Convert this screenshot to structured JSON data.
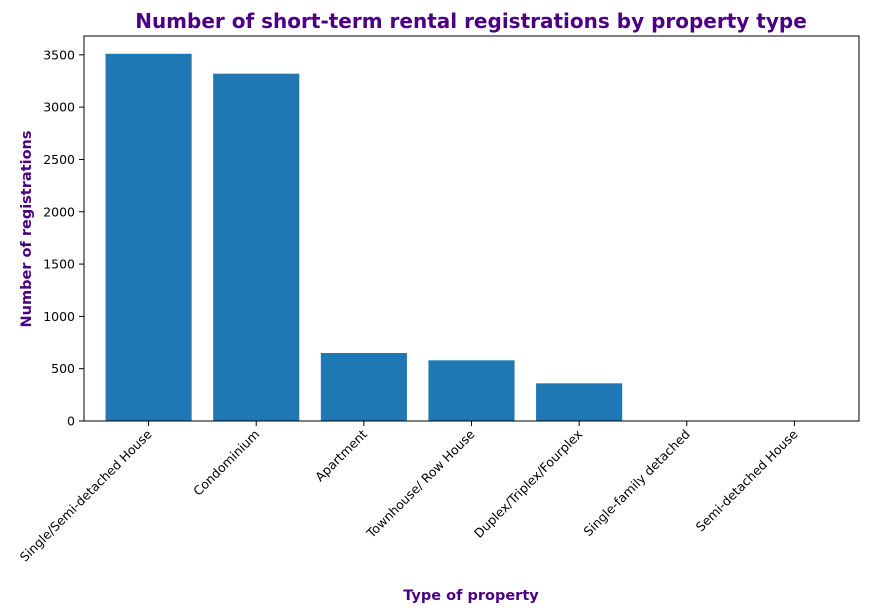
{
  "colors": {
    "bar": "#1f77b4",
    "title": "#4b0082",
    "axis_label": "#4b0082"
  },
  "chart_data": {
    "type": "bar",
    "title": "Number of short-term rental registrations by property type",
    "xlabel": "Type of property",
    "ylabel": "Number of registrations",
    "categories": [
      "Single/Semi-detached House",
      "Condominium",
      "Apartment",
      "Townhouse/ Row House",
      "Duplex/Triplex/Fourplex",
      "Single-family detached",
      "Semi-detached House"
    ],
    "values": [
      3510,
      3320,
      650,
      580,
      360,
      1,
      1
    ],
    "ylim": [
      0,
      3680
    ],
    "yticks": [
      0,
      500,
      1000,
      1500,
      2000,
      2500,
      3000,
      3500
    ],
    "grid": false,
    "legend": "none"
  }
}
